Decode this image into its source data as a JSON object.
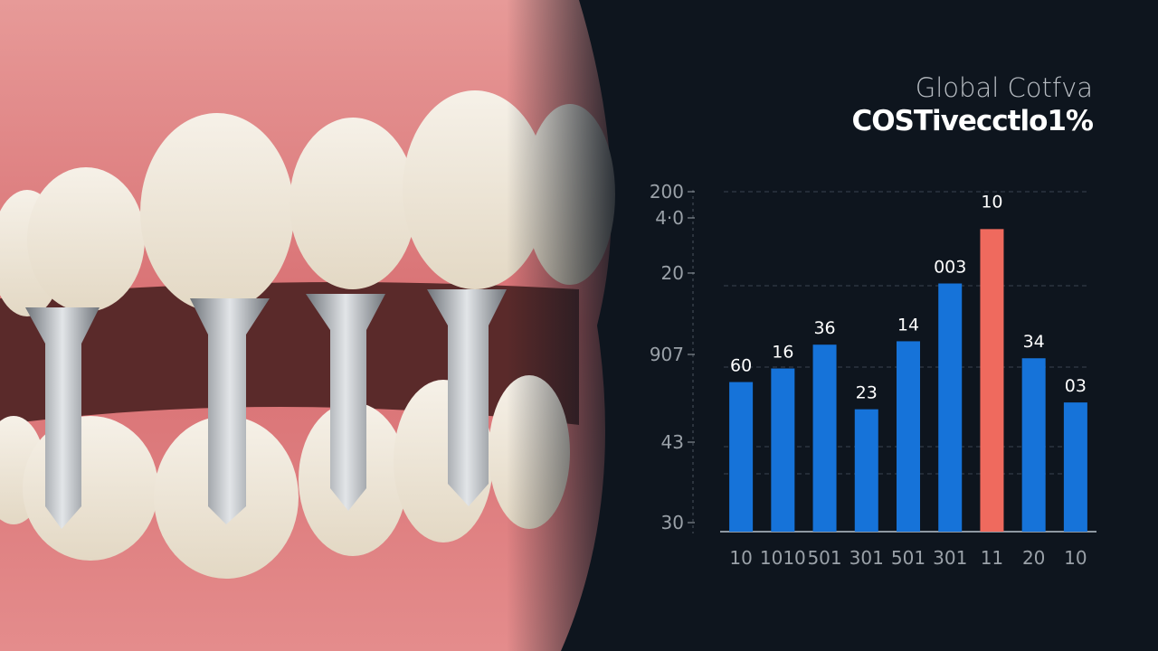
{
  "header": {
    "title": "Global Cotfva",
    "subtitle": "COSTivecctlo1%"
  },
  "photo": {
    "subject": "teeth-with-implant-screws"
  },
  "colors": {
    "background": "#0e151e",
    "bar": "#1673d9",
    "highlight_bar": "#ef6a5e",
    "text": "#ffffff",
    "axis_text": "#9aa1a8"
  },
  "chart_data": {
    "type": "bar",
    "title": "Global Cotfva",
    "subtitle": "COSTivecctlo1%",
    "categories": [
      "10",
      "1010",
      "501",
      "301",
      "501",
      "301",
      "11",
      "20",
      "10"
    ],
    "values": [
      44,
      48,
      55,
      36,
      56,
      73,
      89,
      51,
      38
    ],
    "data_labels": [
      "60",
      "16",
      "36",
      "23",
      "14",
      "003",
      "10",
      "34",
      "03"
    ],
    "highlight_index": 6,
    "y_tick_labels": [
      "200",
      "4·0",
      "20",
      "907",
      "43",
      "30"
    ],
    "ylim": [
      0,
      100
    ],
    "grid": true,
    "legend": "none"
  }
}
